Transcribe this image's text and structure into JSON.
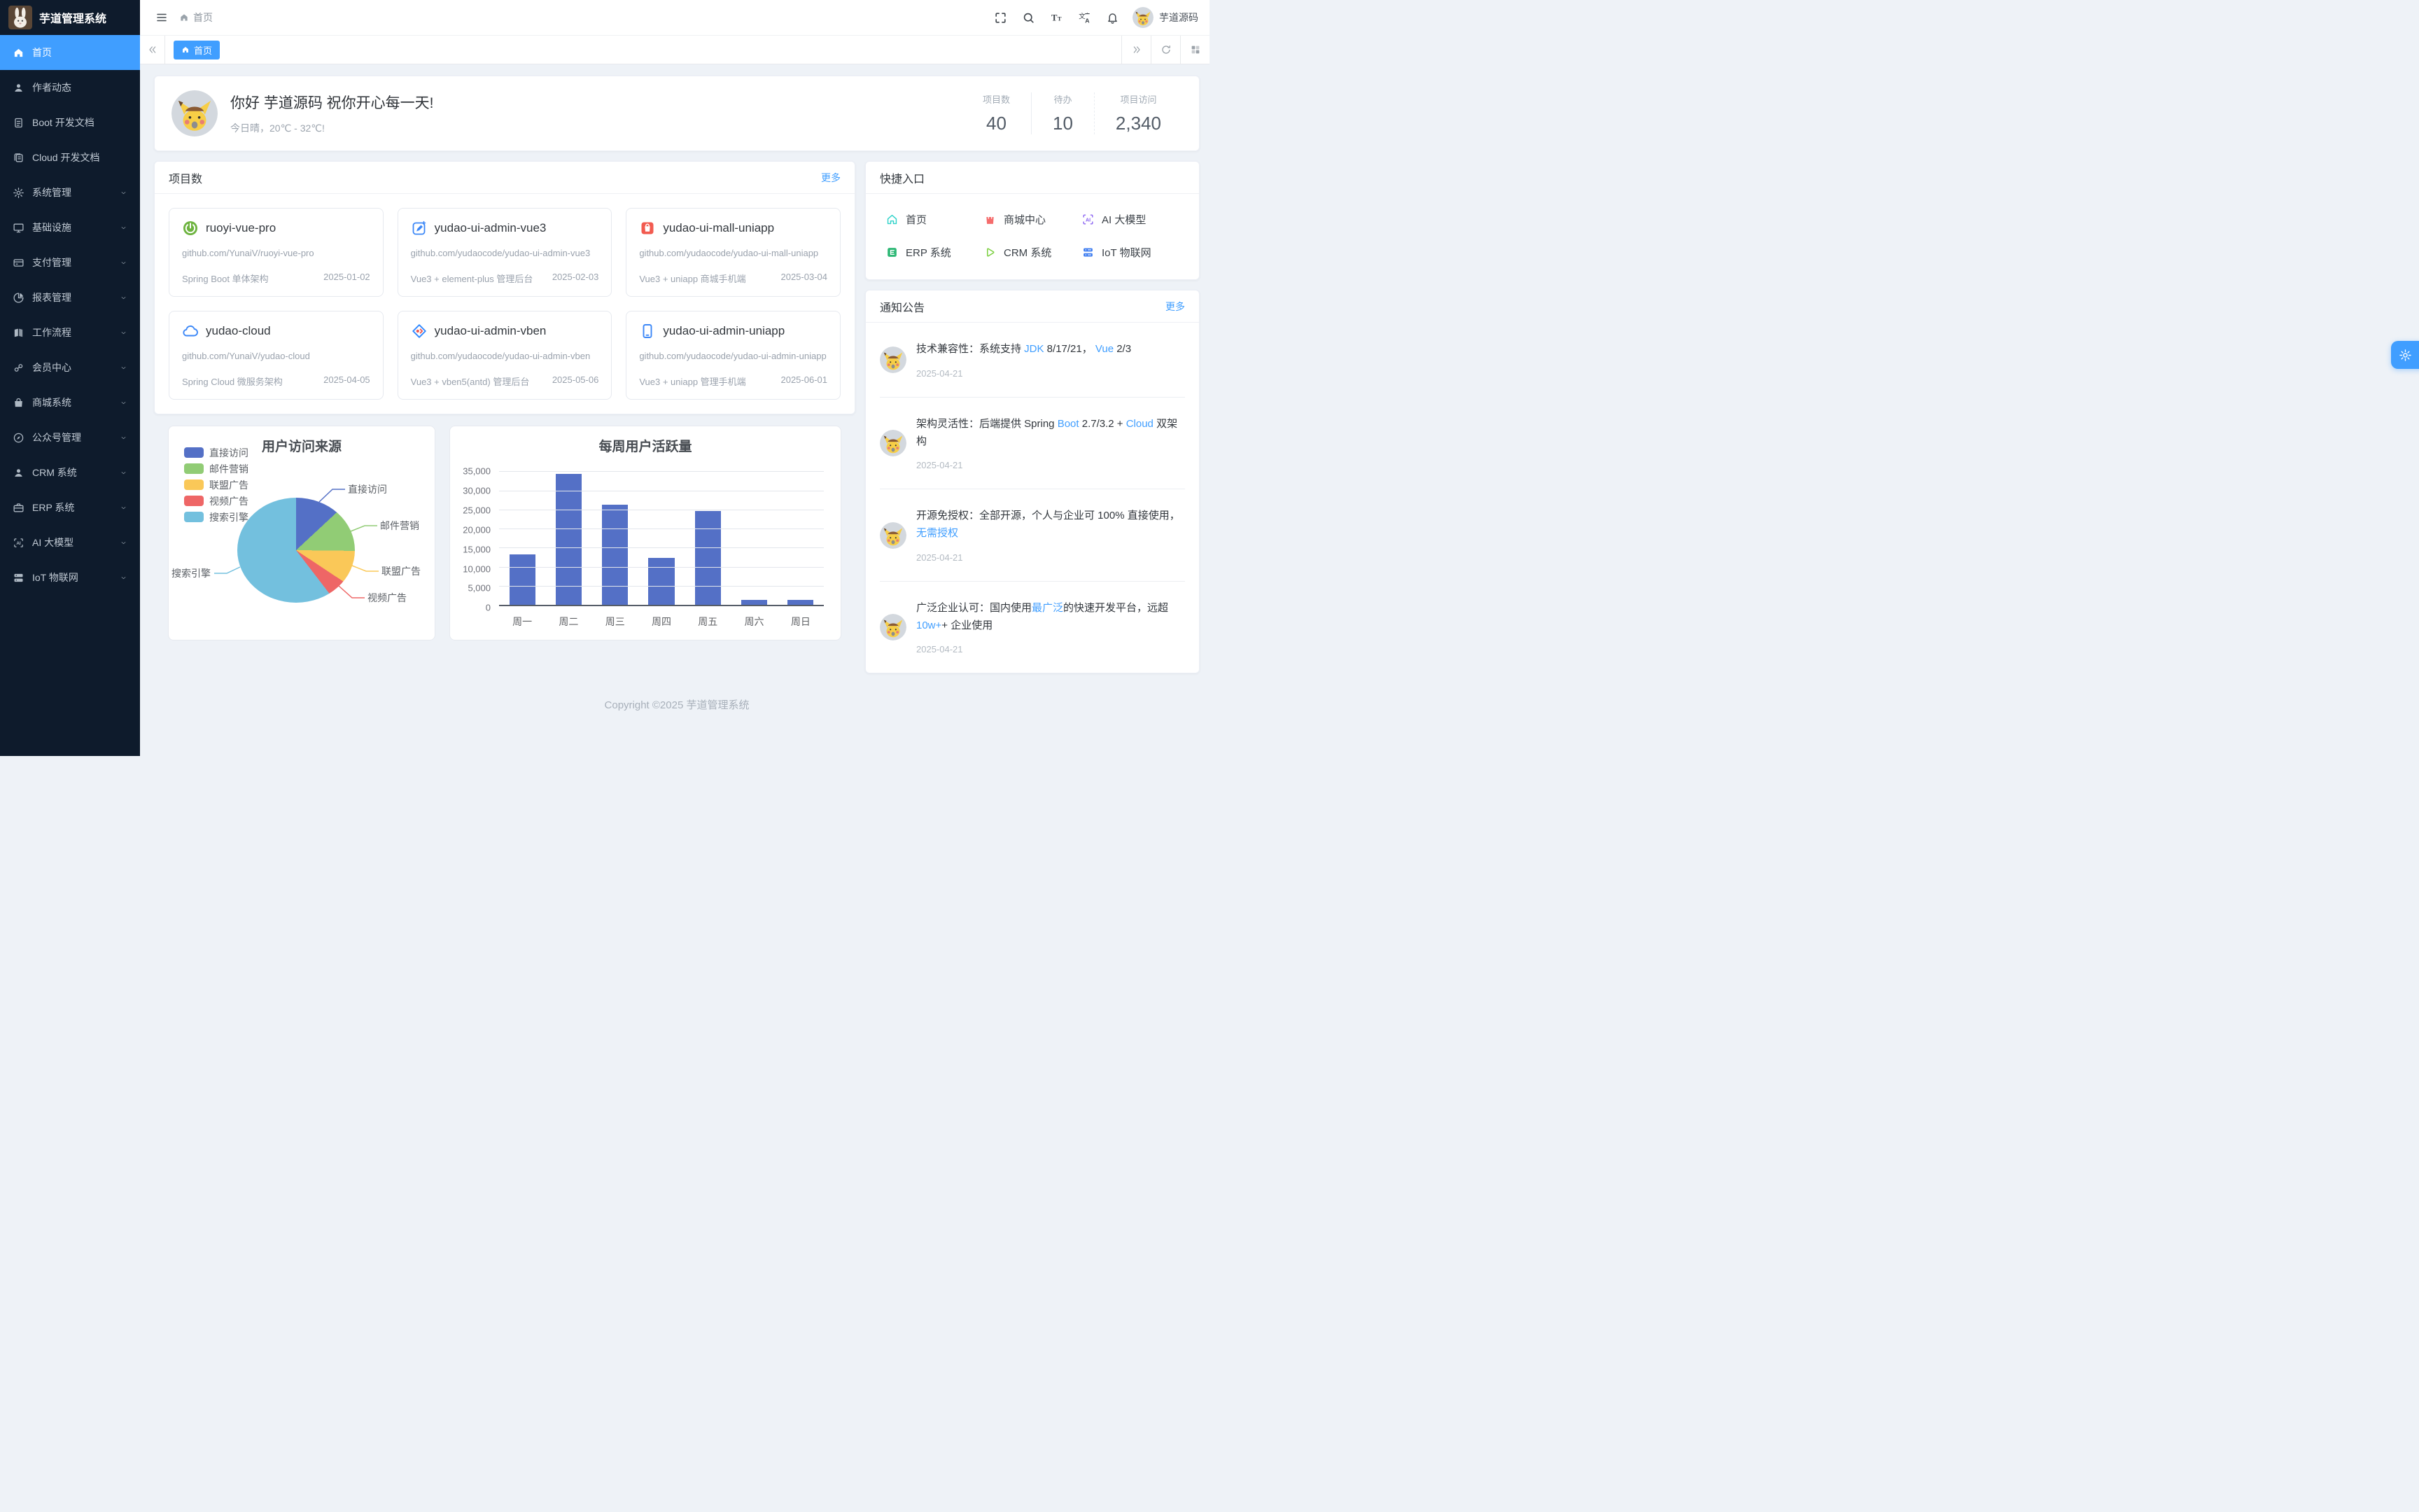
{
  "app": {
    "title": "芋道管理系统",
    "footer": "Copyright ©2025 芋道管理系统",
    "accent_color": "#409eff",
    "sidebar_bg": "#0e1b2c",
    "content_bg": "#eef2f7"
  },
  "header": {
    "breadcrumb": "首页",
    "username": "芋道源码",
    "icons": [
      {
        "key": "fullscreen",
        "name": "fullscreen-icon"
      },
      {
        "key": "search",
        "name": "search-icon"
      },
      {
        "key": "font-size",
        "name": "font-size-icon"
      },
      {
        "key": "language",
        "name": "language-icon"
      },
      {
        "key": "bell",
        "name": "notification-bell-icon"
      }
    ]
  },
  "tagbar": {
    "active_tag": "首页"
  },
  "sidebar": {
    "items": [
      {
        "key": "home",
        "label": "首页",
        "icon": "home",
        "active": true,
        "arrow": false
      },
      {
        "key": "author-news",
        "label": "作者动态",
        "icon": "user",
        "active": false,
        "arrow": false
      },
      {
        "key": "boot-docs",
        "label": "Boot 开发文档",
        "icon": "document",
        "active": false,
        "arrow": false
      },
      {
        "key": "cloud-docs",
        "label": "Cloud 开发文档",
        "icon": "documents",
        "active": false,
        "arrow": false
      },
      {
        "key": "system",
        "label": "系统管理",
        "icon": "gear",
        "active": false,
        "arrow": true
      },
      {
        "key": "infra",
        "label": "基础设施",
        "icon": "monitor",
        "active": false,
        "arrow": true
      },
      {
        "key": "payment",
        "label": "支付管理",
        "icon": "payment",
        "active": false,
        "arrow": true
      },
      {
        "key": "report",
        "label": "报表管理",
        "icon": "report",
        "active": false,
        "arrow": true
      },
      {
        "key": "workflow",
        "label": "工作流程",
        "icon": "workflow",
        "active": false,
        "arrow": true
      },
      {
        "key": "member",
        "label": "会员中心",
        "icon": "member",
        "active": false,
        "arrow": true
      },
      {
        "key": "mall",
        "label": "商城系统",
        "icon": "shop",
        "active": false,
        "arrow": true
      },
      {
        "key": "mp",
        "label": "公众号管理",
        "icon": "compass",
        "active": false,
        "arrow": true
      },
      {
        "key": "crm",
        "label": "CRM 系统",
        "icon": "user",
        "active": false,
        "arrow": true
      },
      {
        "key": "erp",
        "label": "ERP 系统",
        "icon": "briefcase",
        "active": false,
        "arrow": true
      },
      {
        "key": "ai",
        "label": "AI 大模型",
        "icon": "ai",
        "active": false,
        "arrow": true
      },
      {
        "key": "iot",
        "label": "IoT 物联网",
        "icon": "iot-dark",
        "active": false,
        "arrow": true
      }
    ]
  },
  "greeting": {
    "title": "你好 芋道源码 祝你开心每一天!",
    "subtitle": "今日晴，20℃ - 32℃!",
    "stats": [
      {
        "label": "项目数",
        "value": "40"
      },
      {
        "label": "待办",
        "value": "10"
      },
      {
        "label": "项目访问",
        "value": "2,340"
      }
    ]
  },
  "projects": {
    "title": "项目数",
    "more": "更多",
    "cards": [
      {
        "key": "ruoyi-vue-pro",
        "icon": "spring-boot",
        "name": "ruoyi-vue-pro",
        "url": "github.com/YunaiV/ruoyi-vue-pro",
        "desc": "Spring Boot 单体架构",
        "date": "2025-01-02"
      },
      {
        "key": "yudao-ui-admin-vue3",
        "icon": "vue-pen",
        "name": "yudao-ui-admin-vue3",
        "url": "github.com/yudaocode/yudao-ui-admin-vue3",
        "desc": "Vue3 + element-plus 管理后台",
        "date": "2025-02-03"
      },
      {
        "key": "yudao-ui-mall-uniapp",
        "icon": "mall-bag",
        "name": "yudao-ui-mall-uniapp",
        "url": "github.com/yudaocode/yudao-ui-mall-uniapp",
        "desc": "Vue3 + uniapp 商城手机端",
        "date": "2025-03-04"
      },
      {
        "key": "yudao-cloud",
        "icon": "cloud",
        "name": "yudao-cloud",
        "url": "github.com/YunaiV/yudao-cloud",
        "desc": "Spring Cloud 微服务架构",
        "date": "2025-04-05"
      },
      {
        "key": "yudao-ui-admin-vben",
        "icon": "vben-diamond",
        "name": "yudao-ui-admin-vben",
        "url": "github.com/yudaocode/yudao-ui-admin-vben",
        "desc": "Vue3 + vben5(antd) 管理后台",
        "date": "2025-05-06"
      },
      {
        "key": "yudao-ui-admin-uniapp",
        "icon": "phone",
        "name": "yudao-ui-admin-uniapp",
        "url": "github.com/yudaocode/yudao-ui-admin-uniapp",
        "desc": "Vue3 + uniapp 管理手机端",
        "date": "2025-06-01"
      }
    ]
  },
  "quick": {
    "title": "快捷入口",
    "items": [
      {
        "key": "home",
        "label": "首页",
        "icon": "q-home",
        "color": "#2ed2c9"
      },
      {
        "key": "mall-center",
        "label": "商城中心",
        "icon": "q-mall",
        "color": "#f56c6c"
      },
      {
        "key": "ai-model",
        "label": "AI 大模型",
        "icon": "q-ai",
        "color": "#8a63f2"
      },
      {
        "key": "erp",
        "label": "ERP 系统",
        "icon": "q-erp",
        "color": "#2eb876"
      },
      {
        "key": "crm",
        "label": "CRM 系统",
        "icon": "q-crm",
        "color": "#7bcf3f"
      },
      {
        "key": "iot",
        "label": "IoT 物联网",
        "icon": "q-iot",
        "color": "#3a7af0"
      }
    ]
  },
  "notices": {
    "title": "通知公告",
    "more": "更多",
    "items": [
      {
        "date": "2025-04-21",
        "segments": [
          {
            "text": "技术兼容性：系统支持 ",
            "highlight": false
          },
          {
            "text": "JDK",
            "highlight": true
          },
          {
            "text": " 8/17/21， ",
            "highlight": false
          },
          {
            "text": "Vue",
            "highlight": true
          },
          {
            "text": " 2/3",
            "highlight": false
          }
        ]
      },
      {
        "date": "2025-04-21",
        "segments": [
          {
            "text": "架构灵活性：后端提供 Spring ",
            "highlight": false
          },
          {
            "text": "Boot",
            "highlight": true
          },
          {
            "text": " 2.7/3.2 + ",
            "highlight": false
          },
          {
            "text": "Cloud",
            "highlight": true
          },
          {
            "text": " 双架构",
            "highlight": false
          }
        ]
      },
      {
        "date": "2025-04-21",
        "segments": [
          {
            "text": "开源免授权：全部开源，个人与企业可 100% 直接使用，",
            "highlight": false
          },
          {
            "text": "无需授权",
            "highlight": true
          }
        ]
      },
      {
        "date": "2025-04-21",
        "segments": [
          {
            "text": "广泛企业认可：国内使用",
            "highlight": false
          },
          {
            "text": "最广泛",
            "highlight": true
          },
          {
            "text": "的快速开发平台，远超 ",
            "highlight": false
          },
          {
            "text": "10w+",
            "highlight": true
          },
          {
            "text": "+ 企业使用",
            "highlight": false
          }
        ]
      }
    ]
  },
  "chart_data": [
    {
      "type": "pie",
      "title": "用户访问来源",
      "legend_position": "left",
      "series": [
        {
          "name": "直接访问",
          "value": 335,
          "color": "#5470c6"
        },
        {
          "name": "邮件营销",
          "value": 310,
          "color": "#91cc75"
        },
        {
          "name": "联盟广告",
          "value": 234,
          "color": "#fac858"
        },
        {
          "name": "视频广告",
          "value": 135,
          "color": "#ee6666"
        },
        {
          "name": "搜索引擎",
          "value": 1548,
          "color": "#73c0de"
        }
      ]
    },
    {
      "type": "bar",
      "title": "每周用户活跃量",
      "categories": [
        "周一",
        "周二",
        "周三",
        "周四",
        "周五",
        "周六",
        "周日"
      ],
      "values": [
        13253,
        34235,
        26321,
        12340,
        24643,
        1322,
        1324
      ],
      "xlabel": "",
      "ylabel": "",
      "ylim": [
        0,
        35000
      ],
      "ytick_step": 5000,
      "bar_color": "#5470c6",
      "grid": true
    }
  ]
}
